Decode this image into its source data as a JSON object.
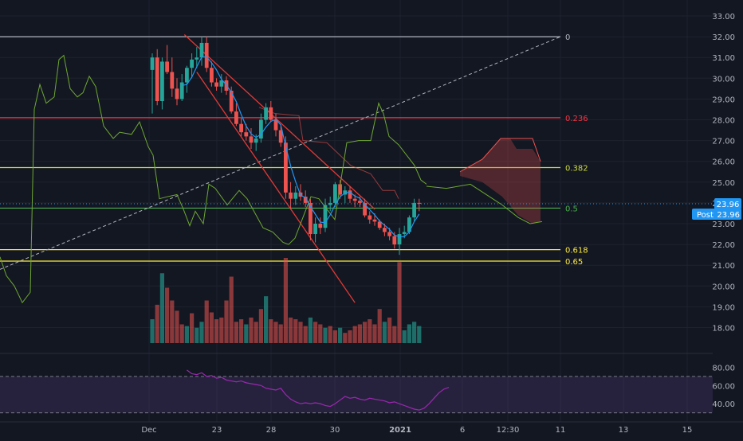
{
  "chart_data": {
    "type": "candlestick",
    "title": "",
    "price_axis": {
      "min": 16.0,
      "max": 33.0,
      "ticks": [
        "33.00",
        "32.00",
        "31.00",
        "30.00",
        "29.00",
        "28.00",
        "27.00",
        "26.00",
        "25.00",
        "24.00",
        "23.00",
        "22.00",
        "21.00",
        "20.00",
        "19.00",
        "18.00"
      ]
    },
    "time_axis": {
      "labels": [
        "Dec",
        "23",
        "28",
        "30",
        "2021",
        "6",
        "12:30",
        "11",
        "13",
        "15"
      ]
    },
    "last_price": {
      "value": "23.96",
      "post_label": "Post",
      "post_value": "23.96"
    },
    "fib_levels": [
      {
        "level": "0",
        "price": 32.0,
        "color": "#b2b5be"
      },
      {
        "level": "0.236",
        "price": 28.1,
        "color": "#f23645"
      },
      {
        "level": "0.382",
        "price": 25.7,
        "color": "#cddc39"
      },
      {
        "level": "0.5",
        "price": 23.75,
        "color": "#4caf50"
      },
      {
        "level": "0.618",
        "price": 21.75,
        "color": "#ffeb3b"
      },
      {
        "level": "0.65",
        "price": 21.2,
        "color": "#ffeb3b"
      }
    ],
    "candles": [
      [
        30.4,
        31.2,
        28.3,
        31.0
      ],
      [
        31.0,
        31.4,
        28.7,
        28.9
      ],
      [
        28.9,
        31.0,
        28.5,
        30.8
      ],
      [
        30.8,
        31.6,
        30.2,
        30.3
      ],
      [
        30.3,
        31.0,
        29.1,
        29.5
      ],
      [
        29.5,
        30.0,
        28.7,
        29.0
      ],
      [
        29.0,
        30.2,
        28.9,
        29.8
      ],
      [
        29.8,
        30.6,
        29.3,
        30.5
      ],
      [
        30.5,
        31.2,
        30.0,
        30.9
      ],
      [
        30.9,
        31.5,
        30.5,
        31.0
      ],
      [
        31.0,
        32.0,
        30.6,
        31.7
      ],
      [
        31.7,
        32.0,
        30.3,
        30.5
      ],
      [
        30.5,
        30.8,
        29.6,
        29.8
      ],
      [
        29.8,
        30.0,
        29.4,
        29.6
      ],
      [
        29.6,
        30.2,
        29.3,
        29.9
      ],
      [
        29.9,
        30.1,
        29.2,
        29.4
      ],
      [
        29.4,
        29.6,
        28.3,
        28.4
      ],
      [
        28.4,
        28.8,
        27.7,
        27.8
      ],
      [
        27.8,
        28.1,
        27.2,
        27.4
      ],
      [
        27.4,
        27.8,
        27.0,
        27.2
      ],
      [
        27.2,
        27.6,
        26.6,
        26.9
      ],
      [
        26.9,
        27.3,
        26.5,
        27.1
      ],
      [
        27.1,
        28.3,
        26.9,
        28.0
      ],
      [
        28.0,
        28.8,
        27.8,
        28.6
      ],
      [
        28.6,
        28.9,
        27.9,
        28.0
      ],
      [
        28.0,
        28.3,
        27.2,
        27.5
      ],
      [
        27.5,
        27.7,
        26.7,
        26.9
      ],
      [
        26.9,
        27.2,
        24.2,
        24.5
      ],
      [
        24.5,
        25.0,
        23.7,
        24.2
      ],
      [
        24.2,
        24.8,
        23.9,
        24.5
      ],
      [
        24.5,
        24.9,
        24.1,
        24.3
      ],
      [
        24.3,
        24.6,
        23.8,
        24.0
      ],
      [
        24.0,
        24.2,
        22.2,
        22.5
      ],
      [
        22.5,
        23.3,
        22.1,
        23.0
      ],
      [
        23.0,
        23.3,
        22.5,
        22.8
      ],
      [
        22.8,
        24.2,
        22.6,
        23.9
      ],
      [
        23.9,
        24.3,
        23.6,
        24.0
      ],
      [
        24.0,
        25.0,
        23.8,
        24.9
      ],
      [
        24.9,
        25.1,
        24.2,
        24.4
      ],
      [
        24.4,
        24.8,
        24.0,
        24.6
      ],
      [
        24.6,
        24.8,
        24.0,
        24.2
      ],
      [
        24.2,
        24.4,
        23.8,
        24.1
      ],
      [
        24.1,
        24.3,
        23.8,
        24.0
      ],
      [
        24.0,
        24.2,
        23.3,
        23.4
      ],
      [
        23.4,
        23.6,
        23.0,
        23.2
      ],
      [
        23.2,
        23.5,
        22.9,
        23.1
      ],
      [
        23.1,
        23.2,
        22.7,
        22.8
      ],
      [
        22.8,
        23.0,
        22.4,
        22.6
      ],
      [
        22.6,
        22.8,
        22.2,
        22.4
      ],
      [
        22.4,
        22.6,
        21.8,
        22.0
      ],
      [
        22.0,
        22.8,
        21.5,
        22.5
      ],
      [
        22.5,
        22.9,
        22.3,
        22.6
      ],
      [
        22.6,
        23.4,
        22.5,
        23.3
      ],
      [
        23.3,
        24.2,
        23.1,
        24.0
      ],
      [
        24.0,
        24.2,
        23.6,
        23.96
      ]
    ],
    "volume": [
      [
        0.28,
        0
      ],
      [
        0.45,
        1
      ],
      [
        0.82,
        0
      ],
      [
        0.65,
        1
      ],
      [
        0.5,
        1
      ],
      [
        0.38,
        1
      ],
      [
        0.22,
        1
      ],
      [
        0.2,
        0
      ],
      [
        0.35,
        1
      ],
      [
        0.18,
        0
      ],
      [
        0.25,
        0
      ],
      [
        0.5,
        1
      ],
      [
        0.36,
        1
      ],
      [
        0.28,
        1
      ],
      [
        0.3,
        1
      ],
      [
        0.5,
        1
      ],
      [
        0.78,
        1
      ],
      [
        0.25,
        1
      ],
      [
        0.28,
        1
      ],
      [
        0.22,
        0
      ],
      [
        0.3,
        1
      ],
      [
        0.25,
        1
      ],
      [
        0.4,
        1
      ],
      [
        0.55,
        0
      ],
      [
        0.28,
        1
      ],
      [
        0.25,
        1
      ],
      [
        0.22,
        1
      ],
      [
        1.0,
        1
      ],
      [
        0.3,
        1
      ],
      [
        0.28,
        1
      ],
      [
        0.25,
        1
      ],
      [
        0.2,
        1
      ],
      [
        0.3,
        0
      ],
      [
        0.25,
        1
      ],
      [
        0.22,
        1
      ],
      [
        0.18,
        0
      ],
      [
        0.2,
        1
      ],
      [
        0.15,
        1
      ],
      [
        0.18,
        0
      ],
      [
        0.12,
        1
      ],
      [
        0.15,
        1
      ],
      [
        0.2,
        1
      ],
      [
        0.22,
        1
      ],
      [
        0.25,
        1
      ],
      [
        0.28,
        1
      ],
      [
        0.22,
        1
      ],
      [
        0.4,
        1
      ],
      [
        0.25,
        0
      ],
      [
        0.3,
        1
      ],
      [
        0.2,
        1
      ],
      [
        0.95,
        1
      ],
      [
        0.15,
        0
      ],
      [
        0.22,
        0
      ],
      [
        0.25,
        0
      ],
      [
        0.2,
        0
      ]
    ],
    "rsi": {
      "ticks": [
        "80.00",
        "60.00",
        "40.00"
      ],
      "upper": 70,
      "lower": 30,
      "values": [
        77,
        73,
        72,
        74,
        70,
        71,
        68,
        69,
        66,
        65,
        64,
        65,
        63,
        62,
        61,
        60,
        57,
        56,
        55,
        57,
        50,
        45,
        42,
        40,
        41,
        40,
        41,
        40,
        38,
        37,
        40,
        44,
        48,
        46,
        47,
        45,
        44,
        46,
        45,
        44,
        43,
        41,
        42,
        40,
        38,
        36,
        34,
        33,
        35,
        40,
        46,
        52,
        56,
        58
      ]
    },
    "colors": {
      "up": "#26a69a",
      "down": "#ef5350",
      "bg": "#131722",
      "text": "#b2b5be",
      "ma": "#2196f3",
      "lagging": "#6fa832",
      "channel": "#e53935",
      "rsi": "#9c27b0",
      "price_tag": "#2196f3"
    }
  }
}
